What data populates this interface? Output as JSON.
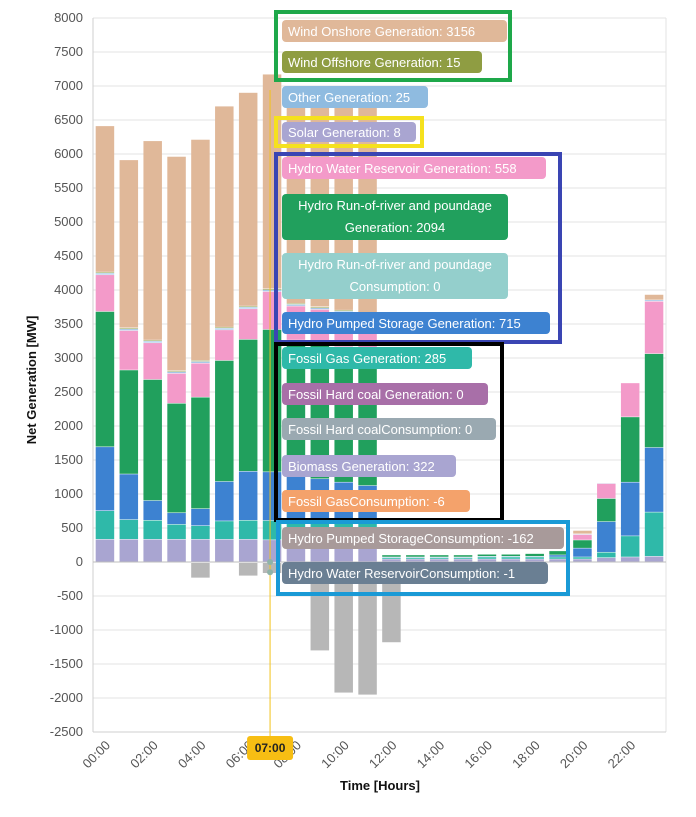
{
  "chart_data": {
    "type": "bar",
    "stacked": true,
    "xlabel": "Time [Hours]",
    "ylabel": "Net Generation [MW]",
    "ylim": [
      -2500,
      8000
    ],
    "ytick_step": 500,
    "xtick_labels": [
      "00:00",
      "02:00",
      "04:00",
      "06:00",
      "08:00",
      "10:00",
      "12:00",
      "14:00",
      "16:00",
      "18:00",
      "20:00",
      "22:00"
    ],
    "grid": true,
    "cursor_label": "07:00",
    "colors": {
      "biomass": "#a9a5d1",
      "fossil_gas": "#2fb9a9",
      "pumped_gen": "#3d82d1",
      "runofriver_gen": "#21a05d",
      "hydro_reservoir": "#f39ac9",
      "other": "#a3c6e6",
      "offshore": "#8f9d42",
      "onshore": "#e0b899",
      "pumped_consumption": "#b7b7b7"
    },
    "series": [
      {
        "key": "biomass",
        "values": [
          330,
          330,
          330,
          330,
          330,
          330,
          330,
          322,
          330,
          330,
          330,
          330,
          40,
          40,
          40,
          40,
          40,
          40,
          40,
          40,
          40,
          60,
          70,
          80
        ]
      },
      {
        "key": "fossil_gas",
        "values": [
          420,
          290,
          280,
          220,
          200,
          270,
          280,
          285,
          290,
          290,
          290,
          290,
          20,
          20,
          20,
          20,
          30,
          30,
          30,
          30,
          30,
          80,
          310,
          650
        ]
      },
      {
        "key": "pumped_gen",
        "values": [
          940,
          670,
          290,
          170,
          250,
          580,
          720,
          715,
          650,
          600,
          550,
          500,
          10,
          10,
          10,
          10,
          10,
          10,
          10,
          30,
          130,
          450,
          790,
          950
        ]
      },
      {
        "key": "runofriver_gen",
        "values": [
          1990,
          1530,
          1780,
          1610,
          1640,
          1780,
          1940,
          2094,
          1990,
          1990,
          1990,
          1990,
          30,
          30,
          30,
          30,
          30,
          30,
          40,
          60,
          120,
          340,
          960,
          1380
        ]
      },
      {
        "key": "hydro_reservoir",
        "values": [
          540,
          580,
          540,
          440,
          500,
          450,
          450,
          558,
          500,
          500,
          500,
          500,
          0,
          0,
          0,
          0,
          0,
          0,
          0,
          0,
          80,
          220,
          500,
          770
        ]
      },
      {
        "key": "other",
        "values": [
          25,
          25,
          25,
          25,
          25,
          25,
          25,
          25,
          25,
          25,
          25,
          25,
          5,
          5,
          5,
          5,
          5,
          5,
          5,
          5,
          10,
          10,
          5,
          20
        ]
      },
      {
        "key": "offshore",
        "values": [
          15,
          15,
          15,
          15,
          15,
          15,
          15,
          15,
          15,
          15,
          15,
          15,
          0,
          0,
          0,
          0,
          0,
          0,
          0,
          0,
          0,
          0,
          0,
          0
        ]
      },
      {
        "key": "onshore",
        "values": [
          2150,
          2470,
          2930,
          3150,
          3250,
          3250,
          3140,
          3156,
          3150,
          3150,
          3150,
          3150,
          0,
          0,
          0,
          0,
          0,
          0,
          0,
          0,
          50,
          0,
          0,
          80
        ]
      },
      {
        "key": "pumped_consumption",
        "values": [
          0,
          0,
          0,
          0,
          -230,
          0,
          -200,
          -162,
          -150,
          -1300,
          -1920,
          -1950,
          -1180,
          0,
          0,
          0,
          0,
          0,
          0,
          0,
          0,
          0,
          0,
          0
        ]
      }
    ],
    "tooltip": {
      "time": "07:00",
      "items": [
        {
          "label": "Wind Onshore Generation: 3156",
          "color": "#e0b899",
          "text_color": "#ffffff"
        },
        {
          "label": "Wind Offshore Generation: 15",
          "color": "#8f9d42",
          "text_color": "#ffffff"
        },
        {
          "label": "Other Generation: 25",
          "color": "#8fbbe0",
          "text_color": "#ffffff"
        },
        {
          "label": "Solar Generation: 8",
          "color": "#a9a5d1",
          "text_color": "#ffffff"
        },
        {
          "label": "Hydro Water Reservoir Generation: 558",
          "color": "#f39ac9",
          "text_color": "#ffffff"
        },
        {
          "label": "Hydro Run-of-river and poundage",
          "label2": "Generation: 2094",
          "color": "#21a05d",
          "text_color": "#ffffff"
        },
        {
          "label": "Hydro Run-of-river and poundage",
          "label2": "Consumption: 0",
          "color": "#94cfcc",
          "text_color": "#ffffff"
        },
        {
          "label": "Hydro Pumped Storage Generation: 715",
          "color": "#3d82d1",
          "text_color": "#ffffff"
        },
        {
          "label": "Fossil Gas Generation: 285",
          "color": "#2fb9a9",
          "text_color": "#ffffff"
        },
        {
          "label": "Fossil Hard coal Generation: 0",
          "color": "#a86fa8",
          "text_color": "#ffffff"
        },
        {
          "label": "Fossil Hard coalConsumption: 0",
          "color": "#9aa9b1",
          "text_color": "#ffffff"
        },
        {
          "label": "Biomass Generation: 322",
          "color": "#a9a5d1",
          "text_color": "#ffffff"
        },
        {
          "label": "Fossil GasConsumption: -6",
          "color": "#f4a26b",
          "text_color": "#ffffff"
        },
        {
          "label": "Hydro Pumped StorageConsumption: -162",
          "color": "#a89a9a",
          "text_color": "#ffffff"
        },
        {
          "label": "Hydro Water ReservoirConsumption: -1",
          "color": "#6a7f93",
          "text_color": "#ffffff"
        }
      ]
    },
    "highlight_boxes": [
      {
        "color": "#1ea84a"
      },
      {
        "color": "#f5e11e"
      },
      {
        "color": "#3a45b3"
      },
      {
        "color": "#000000"
      },
      {
        "color": "#1a9ad6"
      }
    ]
  }
}
